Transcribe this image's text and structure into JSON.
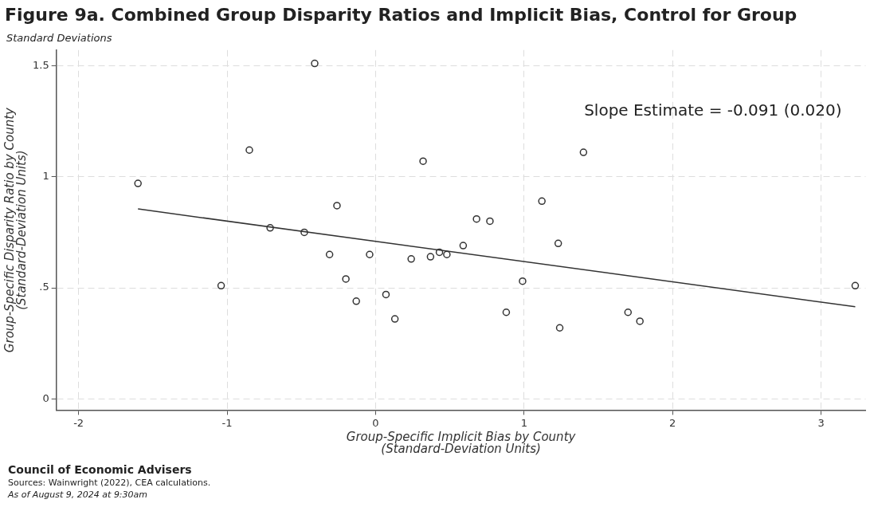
{
  "chart_data": {
    "type": "scatter",
    "title": "Figure 9a. Combined Group Disparity Ratios and Implicit Bias, Control for Group",
    "subtitle": "Standard Deviations",
    "xlabel": "Group-Specific Implicit Bias by County\n(Standard-Deviation Units)",
    "ylabel": "Group-Specific Disparity Ratio by County\n(Standard-Deviation Units)",
    "series": [
      {
        "type": "scatter",
        "color": "#333333",
        "marker": "circle",
        "x": [
          -1.6,
          -1.04,
          -0.85,
          -0.71,
          -0.48,
          -0.41,
          -0.31,
          -0.26,
          -0.2,
          -0.13,
          -0.04,
          0.07,
          0.13,
          0.24,
          0.32,
          0.37,
          0.43,
          0.48,
          0.59,
          0.68,
          0.77,
          0.88,
          0.99,
          1.12,
          1.23,
          1.24,
          1.4,
          1.7,
          1.78,
          3.23
        ],
        "values": [
          0.97,
          0.51,
          1.12,
          0.77,
          0.75,
          1.51,
          0.65,
          0.87,
          0.54,
          0.44,
          0.65,
          0.47,
          0.36,
          0.63,
          1.07,
          0.64,
          0.66,
          0.65,
          0.69,
          0.81,
          0.8,
          0.39,
          0.53,
          0.89,
          0.7,
          0.32,
          1.11,
          0.39,
          0.35,
          0.51
        ]
      },
      {
        "type": "line",
        "color": "#333333",
        "marker": "none",
        "x": [
          -1.6,
          3.23
        ],
        "values": [
          0.855,
          0.415
        ]
      }
    ],
    "xlim": [
      -2.15,
      3.3
    ],
    "ylim": [
      -0.05,
      1.57
    ],
    "xticks": [
      -2,
      -1,
      0,
      1,
      2,
      3
    ],
    "yticks": [
      {
        "value": 0,
        "label": "0"
      },
      {
        "value": 0.5,
        "label": ".5"
      },
      {
        "value": 1,
        "label": "1"
      },
      {
        "value": 1.5,
        "label": "1.5"
      }
    ],
    "grid": true,
    "legend": false,
    "annotations": [
      "Slope Estimate = -0.091 (0.020)",
      "Council of Economic Advisers",
      "Sources: Wainwright (2022), CEA calculations.",
      "As of August 9, 2024 at 9:30am"
    ]
  }
}
